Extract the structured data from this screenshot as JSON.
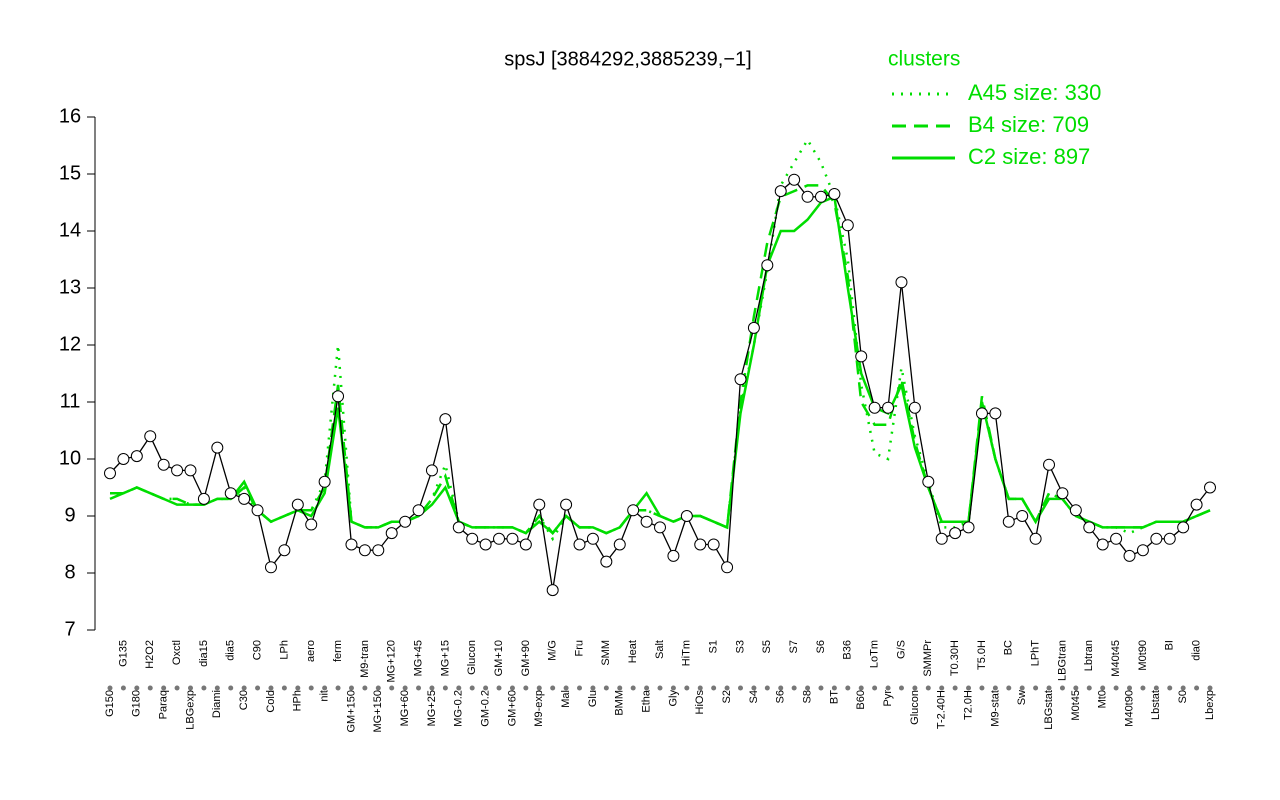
{
  "chart_data": {
    "type": "line",
    "title": "spsJ [3884292,3885239,−1]",
    "legend_title": "clusters",
    "legend_position": "top-right",
    "categories": [
      "G150",
      "G135",
      "G180",
      "H2O2",
      "Paraq",
      "Oxctl",
      "LBGexp",
      "dia15",
      "Diami",
      "dia5",
      "C30",
      "C90",
      "Cold",
      "LPh",
      "HPh",
      "aero",
      "nit",
      "ferm",
      "GM+150",
      "M9-tran",
      "MG+150",
      "MG+120",
      "MG+60",
      "MG+45",
      "MG+25",
      "MG+15",
      "MG-0.2",
      "Glucon",
      "GM-0.2",
      "GM+10",
      "GM+60",
      "GM+90",
      "M9-exp",
      "M/G",
      "Mal",
      "Fru",
      "Glu",
      "SMM",
      "BMM",
      "Heat",
      "Etha",
      "Salt",
      "Gly",
      "HiTm",
      "HiOs",
      "S1",
      "S2",
      "S3",
      "S4",
      "S5",
      "S6",
      "S7",
      "S8",
      "S6",
      "BT",
      "B36",
      "B60",
      "LoTm",
      "Pyr",
      "G/S",
      "Glucon",
      "SMMPr",
      "T-2.40H",
      "T0.30H",
      "T2.0H",
      "T5.0H",
      "M9-stat",
      "BC",
      "Sw",
      "LPhT",
      "LBGstat",
      "LBGtran",
      "M0t45",
      "Lbtran",
      "Mt0",
      "M40t45",
      "M40t90",
      "M0t90",
      "Lbstat",
      "BI",
      "S0",
      "dia0",
      "Lbexp"
    ],
    "values": [
      9.75,
      10.0,
      10.05,
      10.4,
      9.9,
      9.8,
      9.8,
      9.3,
      10.2,
      9.4,
      9.3,
      9.1,
      8.1,
      8.4,
      9.2,
      8.85,
      9.6,
      11.1,
      8.5,
      8.4,
      8.4,
      8.7,
      8.9,
      9.1,
      9.8,
      10.7,
      8.8,
      8.6,
      8.5,
      8.6,
      8.6,
      8.5,
      9.2,
      7.7,
      9.2,
      8.5,
      8.6,
      8.2,
      8.5,
      9.1,
      8.9,
      8.8,
      8.3,
      9.0,
      8.5,
      8.5,
      8.1,
      11.4,
      12.3,
      13.4,
      14.7,
      14.9,
      14.6,
      14.6,
      14.65,
      14.1,
      11.8,
      10.9,
      10.9,
      13.1,
      10.9,
      9.6,
      8.6,
      8.7,
      8.8,
      10.8,
      10.8,
      8.9,
      9.0,
      8.6,
      9.9,
      9.4,
      9.1,
      8.8,
      8.5,
      8.6,
      8.3,
      8.4,
      8.6,
      8.6,
      8.8,
      9.2,
      9.5
    ],
    "color": "#000000",
    "series": [
      {
        "name": "A45 size: 330",
        "color": "#00dd00",
        "dash": "dotted",
        "values": [
          9.4,
          9.4,
          9.5,
          9.4,
          9.3,
          9.3,
          9.2,
          9.2,
          9.3,
          9.3,
          9.4,
          9.1,
          8.9,
          9.0,
          9.1,
          9.1,
          9.6,
          12.0,
          8.9,
          8.8,
          8.8,
          8.9,
          8.9,
          9.0,
          9.3,
          9.9,
          8.9,
          8.8,
          8.8,
          8.8,
          8.8,
          8.7,
          9.0,
          8.6,
          9.0,
          8.8,
          8.8,
          8.7,
          8.8,
          9.1,
          9.1,
          9.0,
          8.9,
          9.0,
          9.0,
          8.9,
          8.8,
          10.9,
          12.0,
          13.3,
          14.8,
          15.2,
          15.6,
          15.2,
          14.6,
          13.5,
          11.3,
          10.1,
          10.0,
          11.6,
          10.4,
          9.6,
          8.8,
          8.8,
          8.9,
          11.0,
          10.0,
          9.3,
          9.3,
          8.9,
          9.4,
          9.3,
          9.0,
          8.9,
          8.8,
          8.8,
          8.7,
          8.8,
          8.9,
          8.9,
          8.9,
          9.0,
          9.1
        ]
      },
      {
        "name": "B4 size: 709",
        "color": "#00dd00",
        "dash": "dashed",
        "values": [
          9.4,
          9.4,
          9.5,
          9.4,
          9.3,
          9.3,
          9.2,
          9.2,
          9.3,
          9.3,
          9.5,
          9.1,
          8.9,
          9.0,
          9.1,
          9.1,
          9.5,
          11.3,
          8.9,
          8.8,
          8.8,
          8.9,
          8.9,
          9.0,
          9.3,
          9.7,
          8.9,
          8.8,
          8.8,
          8.8,
          8.8,
          8.7,
          9.0,
          8.7,
          9.0,
          8.8,
          8.8,
          8.7,
          8.8,
          9.1,
          9.1,
          9.0,
          8.9,
          9.0,
          9.0,
          8.9,
          8.8,
          11.0,
          12.5,
          13.8,
          14.6,
          14.7,
          14.8,
          14.8,
          14.5,
          13.2,
          11.0,
          10.6,
          10.6,
          11.4,
          10.3,
          9.5,
          8.9,
          8.9,
          8.9,
          11.1,
          10.0,
          9.3,
          9.3,
          8.9,
          9.4,
          9.3,
          9.0,
          8.9,
          8.8,
          8.8,
          8.8,
          8.8,
          8.9,
          8.9,
          8.9,
          9.0,
          9.1
        ]
      },
      {
        "name": "C2 size: 897",
        "color": "#00dd00",
        "dash": "solid",
        "values": [
          9.3,
          9.4,
          9.5,
          9.4,
          9.3,
          9.2,
          9.2,
          9.2,
          9.3,
          9.3,
          9.6,
          9.1,
          8.9,
          9.0,
          9.1,
          9.0,
          9.4,
          10.9,
          8.9,
          8.8,
          8.8,
          8.9,
          8.9,
          9.0,
          9.2,
          9.5,
          8.9,
          8.8,
          8.8,
          8.8,
          8.8,
          8.7,
          8.9,
          8.7,
          9.0,
          8.8,
          8.8,
          8.7,
          8.8,
          9.1,
          9.4,
          9.0,
          8.9,
          9.0,
          9.0,
          8.9,
          8.8,
          10.8,
          12.0,
          13.4,
          14.0,
          14.0,
          14.2,
          14.5,
          14.6,
          13.0,
          11.5,
          10.9,
          10.8,
          11.3,
          10.2,
          9.5,
          8.9,
          8.9,
          8.9,
          11.0,
          10.0,
          9.3,
          9.3,
          8.9,
          9.3,
          9.3,
          9.0,
          8.9,
          8.8,
          8.8,
          8.8,
          8.8,
          8.9,
          8.9,
          8.9,
          9.0,
          9.1
        ]
      }
    ],
    "ylim": [
      7,
      16
    ],
    "yticks": [
      7,
      8,
      9,
      10,
      11,
      12,
      13,
      14,
      15,
      16
    ]
  }
}
